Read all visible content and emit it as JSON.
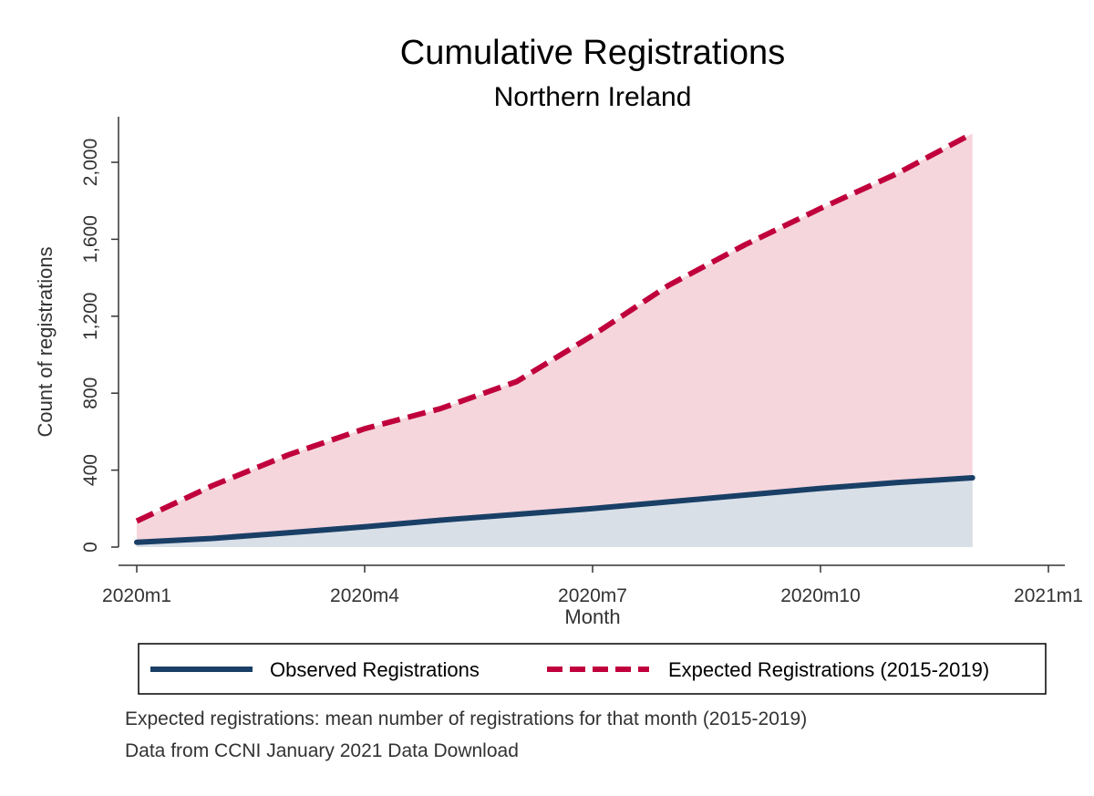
{
  "chart_data": {
    "type": "area",
    "title": "Cumulative Registrations",
    "subtitle": "Northern Ireland",
    "xlabel": "Month",
    "ylabel": "Count of registrations",
    "x": [
      1,
      2,
      3,
      4,
      5,
      6,
      7,
      8,
      9,
      10,
      11,
      12
    ],
    "xlim": [
      1,
      13
    ],
    "ylim": [
      0,
      2200
    ],
    "xticks": [
      {
        "value": 1,
        "label": "2020m1"
      },
      {
        "value": 4,
        "label": "2020m4"
      },
      {
        "value": 7,
        "label": "2020m7"
      },
      {
        "value": 10,
        "label": "2020m10"
      },
      {
        "value": 13,
        "label": "2021m1"
      }
    ],
    "yticks": [
      {
        "value": 0,
        "label": "0"
      },
      {
        "value": 400,
        "label": "400"
      },
      {
        "value": 800,
        "label": "800"
      },
      {
        "value": 1200,
        "label": "1,200"
      },
      {
        "value": 1600,
        "label": "1,600"
      },
      {
        "value": 2000,
        "label": "2,000"
      }
    ],
    "series": [
      {
        "name": "Expected Registrations (2015-2019)",
        "style": "dashed",
        "color": "#c0003c",
        "fill": "#f5d6dc",
        "values": [
          135,
          320,
          480,
          615,
          720,
          860,
          1100,
          1360,
          1570,
          1760,
          1940,
          2150
        ]
      },
      {
        "name": "Observed Registrations",
        "style": "solid",
        "color": "#1a3f66",
        "fill": "#d8dfe7",
        "values": [
          25,
          45,
          75,
          105,
          140,
          170,
          200,
          235,
          270,
          305,
          335,
          360
        ]
      }
    ],
    "legend": {
      "position": "bottom",
      "entries": [
        "Observed Registrations",
        "Expected Registrations (2015-2019)"
      ]
    }
  },
  "notes": [
    "Expected registrations: mean number of registrations for that month (2015-2019)",
    "Data from CCNI January 2021 Data Download"
  ]
}
